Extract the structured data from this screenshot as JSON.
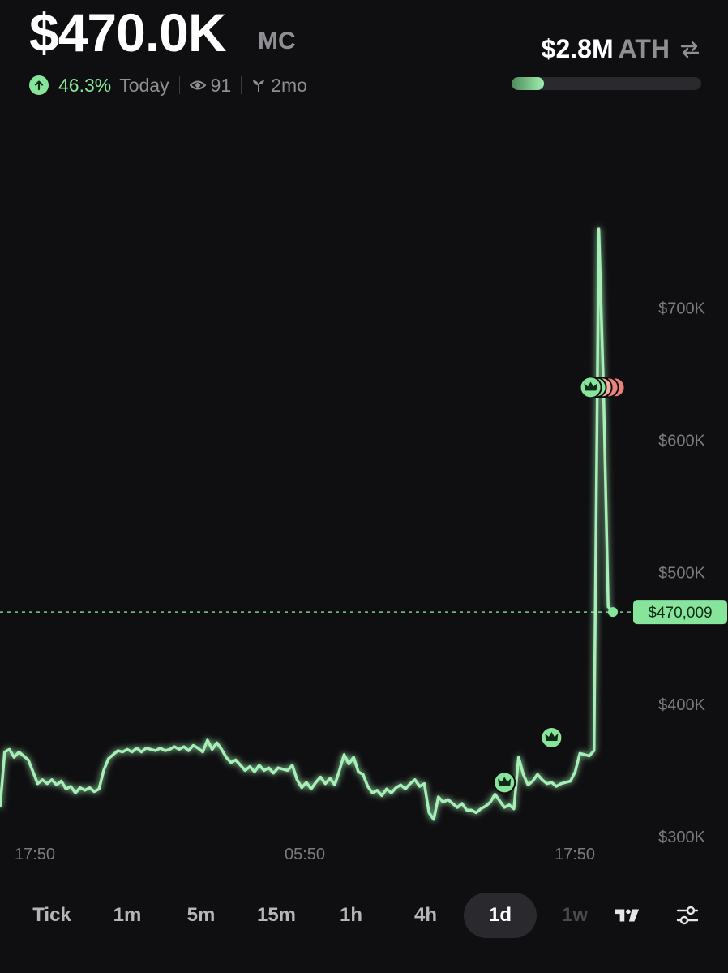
{
  "header": {
    "market_cap": "$470.0K",
    "market_cap_suffix": "MC",
    "change_pct": "46.3%",
    "change_period": "Today",
    "viewers": "91",
    "age": "2mo",
    "ath_value": "$2.8M",
    "ath_label": "ATH",
    "ath_progress": 0.17
  },
  "colors": {
    "accent": "#86e59b",
    "background": "#0f0f11",
    "muted": "#8e8e93",
    "sell_marker": "#e8827a"
  },
  "chart_data": {
    "type": "line",
    "ylim": [
      279000,
      792000
    ],
    "y_ticks": [
      {
        "value": 700000,
        "label": "$700K"
      },
      {
        "value": 600000,
        "label": "$600K"
      },
      {
        "value": 500000,
        "label": "$500K"
      },
      {
        "value": 400000,
        "label": "$400K"
      },
      {
        "value": 300000,
        "label": "$300K"
      }
    ],
    "x_ticks": [
      "17:50",
      "05:50",
      "17:50"
    ],
    "current_price": 470009,
    "current_price_label": "$470,009",
    "series": [
      {
        "values": [
          322000,
          364000,
          366000,
          360000,
          364000,
          361000,
          358000,
          349000,
          340000,
          343000,
          340000,
          343000,
          339000,
          342000,
          336000,
          338000,
          333000,
          337000,
          335000,
          337000,
          334000,
          336000,
          350000,
          359000,
          362000,
          365000,
          364000,
          366000,
          364000,
          367000,
          364000,
          367000,
          366000,
          365000,
          367000,
          365000,
          366000,
          368000,
          366000,
          368000,
          365000,
          369000,
          367000,
          364000,
          373000,
          366000,
          371000,
          366000,
          360000,
          356000,
          358000,
          354000,
          350000,
          353000,
          349000,
          354000,
          350000,
          352000,
          348000,
          352000,
          351000,
          350000,
          354000,
          343000,
          337000,
          341000,
          336000,
          341000,
          345000,
          340000,
          344000,
          339000,
          350000,
          362000,
          355000,
          360000,
          349000,
          347000,
          338000,
          333000,
          335000,
          331000,
          336000,
          333000,
          337000,
          339000,
          336000,
          340000,
          343000,
          338000,
          340000,
          318000,
          313000,
          330000,
          326000,
          328000,
          325000,
          322000,
          325000,
          320000,
          320000,
          318000,
          321000,
          323000,
          326000,
          332000,
          327000,
          322000,
          324000,
          321000,
          360000,
          347000,
          339000,
          342000,
          347000,
          343000,
          340000,
          341000,
          338000,
          340000,
          341000,
          342000,
          349000,
          363000,
          362000,
          361000,
          365000,
          760000,
          639000,
          474000,
          470009
        ]
      }
    ],
    "trade_markers": [
      {
        "index": 107,
        "value": 331000,
        "kind": "buy"
      },
      {
        "index": 117,
        "value": 365000,
        "kind": "buy"
      },
      {
        "index": 127,
        "value": 640000,
        "kind": "cluster"
      }
    ]
  },
  "timeframes": [
    {
      "label": "Tick",
      "active": false,
      "faded": false
    },
    {
      "label": "1m",
      "active": false,
      "faded": false
    },
    {
      "label": "5m",
      "active": false,
      "faded": false
    },
    {
      "label": "15m",
      "active": false,
      "faded": false
    },
    {
      "label": "1h",
      "active": false,
      "faded": false
    },
    {
      "label": "4h",
      "active": false,
      "faded": false
    },
    {
      "label": "1d",
      "active": true,
      "faded": false
    },
    {
      "label": "1w",
      "active": false,
      "faded": true
    }
  ],
  "tools": {
    "tradingview_icon": "tradingview-icon",
    "settings_icon": "sliders-icon"
  }
}
